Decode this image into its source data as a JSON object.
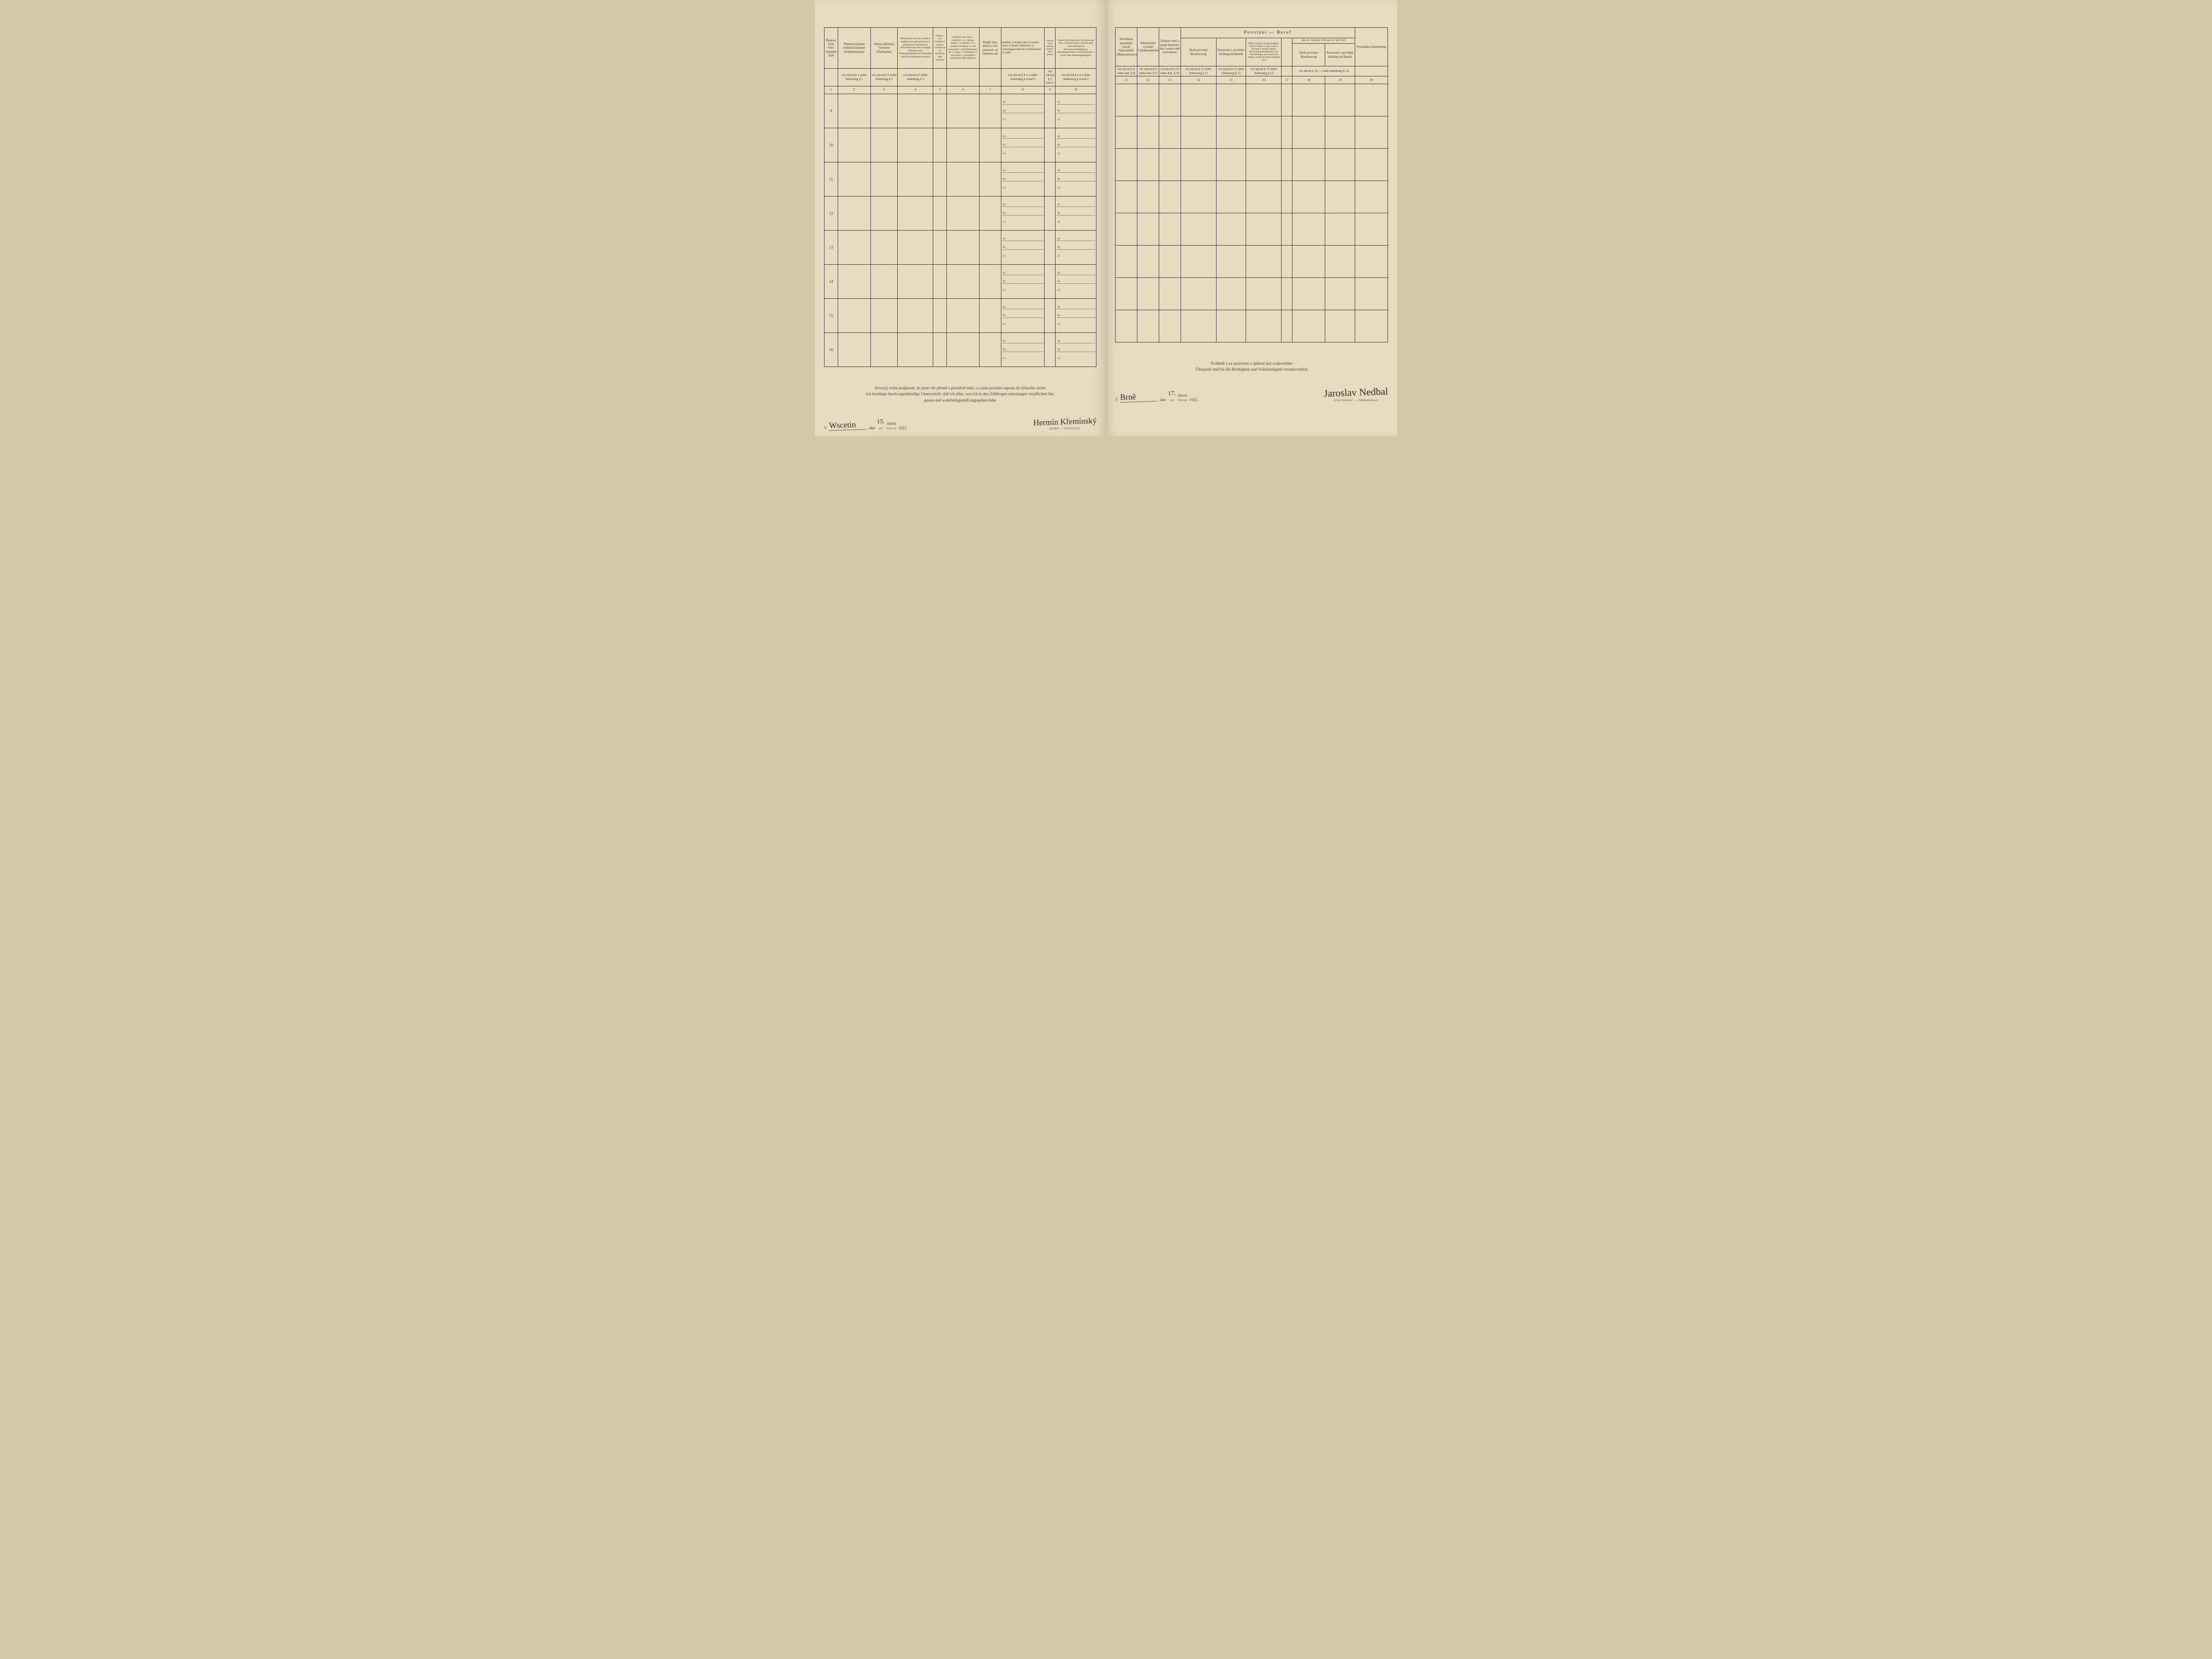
{
  "left": {
    "headers": {
      "c1": "Řadové číslo\nFort-laufende Zahl",
      "c2": "Příjmení\n(jméno rodinné)\nZuname\n(Familienname)",
      "c3": "Jméno\n(křestní)\nVorname\n(Taufname)",
      "c4": "Příbuzenský neb jiný poměr k majiteli bytu (při podnicích k přednostovi domácnosti)\nVerwandtschaft oder sonstiges Verhältnis zum Wohnungsinhaber (bei Anstalten zum Haushaltungsvorstande)",
      "c5": "Pohlaví, zda mužské či ženské\nGeschlecht ob männlich oder weiblich",
      "c6": "Rodinný stav, zda 1. svobodný -á, 2. ženatý, vdaná, 3. ovdovělý -á, 4. soudně rozvedený -á, neb rozloučený -á\nFamilienstand, ob 1. ledig, 2. verheiratet, 3. verwitwet, 4. gerichtlich geschieden oder getrennt",
      "c7": "Rodný den, měsíc a rok (narozen -a)\nGeboren am",
      "c8": "Rodiště:\na) Rodná obec\nb) Soudní okres\nc) Země\nGeburtsort:\na) Geburtsgemeinde\nb) Gerichtsbezirk\nc) Land",
      "c9": "Od kdy bydlí sepsaná osoba v obci pobytu",
      "c10": "Domovská příslušnost (a Domovská obec b Soudní okres c Země) aneb státní příslušnost\nHeimatszuständigkeit (a Heimatsgemeinde b Gerichtsbezirk c Land) oder Staatsangehörigkeit"
    },
    "subrefs": {
      "c2": "viz návod § 1\nsiehe Anleitung § 1",
      "c3": "viz návod § 2\nsiehe Anleitung § 2",
      "c4": "viz návod § 3\nsiehe Anleitung § 3",
      "c8": "viz návod § 4 a 5\nsiehe Anleitung § 4 und 5",
      "c9": "viz návod § 5 und 6",
      "c10": "viz návod § 4 a 5\nsiehe Anleitung § 4 und 5"
    },
    "colnums": [
      "1",
      "2",
      "3",
      "4",
      "5",
      "6",
      "7",
      "8",
      "9",
      "10"
    ],
    "rownums": [
      "9",
      "10",
      "11",
      "12",
      "13",
      "14",
      "15",
      "16"
    ],
    "abc_labels": [
      "a)",
      "b)",
      "c)"
    ],
    "footer_cz": "Stvrzuji svým podpisem, že jsem vše přesně a pravdivě udal, co jsem povinen zapsati do sčítacího archu",
    "footer_de1": "Ich bestätige durch eigenhändige Unterschrift, daß ich alles, was ich in den Zählbogen einzutragen verpflichtet bin,",
    "footer_de2": "genau und wahrheitsgemäß angegeben habe",
    "sig_place": "V",
    "sig_place_hand": "Wscetin",
    "sig_dne": ", dne",
    "sig_am": "am",
    "sig_day": "15.",
    "sig_month_cz": "února",
    "sig_month_de": "Februar",
    "sig_year": "1921.",
    "sig_name": "Hermín Křemínský",
    "sig_under": "(podpis — Unterschrift)"
  },
  "right": {
    "headers": {
      "c11": "Národnost (mateřský jazyk)\nNationalität (Muttersprache)",
      "c12": "Náboženské vyznání\nGlaubensbekenntnis",
      "c13": "Znalost čtení a psaní\nKenntnis des Lesens und Schreibens",
      "povolani_title": "Povolání — Beruf",
      "c14": "Druh povolání\nBerufszweig",
      "c15": "Postavení v povolání\nStellung im Berufe",
      "c16": "Bližší označení závodu (podniku, ústavu, úřadu) a osoby u níž se povolání vykonává\nNähere Bezeichnung des Betriebes (der Unternehmung, der Anstalt, des Amtes), in dem der Beruf ausgeübt wird",
      "c17": "",
      "c18": "Druh povolání\nBerufszweig",
      "c19": "Postavení v povolání\nStellung im Berufe",
      "c1819_top": "dne 16. července 1914\nam 16. Juli 1914",
      "c20": "Poznámka\nAnmerkung"
    },
    "subrefs": {
      "c11": "viz návod § 8\nsiehe Anl. § 8",
      "c12": "viz návod § 9\nsiehe Anl. § 9",
      "c13": "viz návod § 10\nsiehe Anl. § 10",
      "c14": "viz návod § 11\nsiehe Anleitung § 11",
      "c15": "viz návod § 12\nsiehe Anleitung § 12",
      "c16": "viz návod § 13\nsiehe Anleitung § 13",
      "c1819": "viz návod § 14 — siehe Anleitung § 14"
    },
    "colnums": [
      "11",
      "12",
      "13",
      "14",
      "15",
      "16",
      "17",
      "18",
      "19",
      "20"
    ],
    "footer_cz": "Prohlédl a za správnost a úplnost jest zodpověden",
    "footer_de": "Überprüft und für die Richtigkeit und Vollständigkeit verantwortlich",
    "sig_place": "V",
    "sig_place_hand": "Brně",
    "sig_dne": ", dne",
    "sig_am": "am",
    "sig_day": "17.",
    "sig_month_cz": "února",
    "sig_month_de": "Februar",
    "sig_year": "1921.",
    "sig_name": "Jaroslav Nedbal",
    "sig_under": "sčítací komisař. — Zählkommissär."
  },
  "colors": {
    "paper": "#e8dcc0",
    "ink": "#333333",
    "border": "#333333"
  }
}
